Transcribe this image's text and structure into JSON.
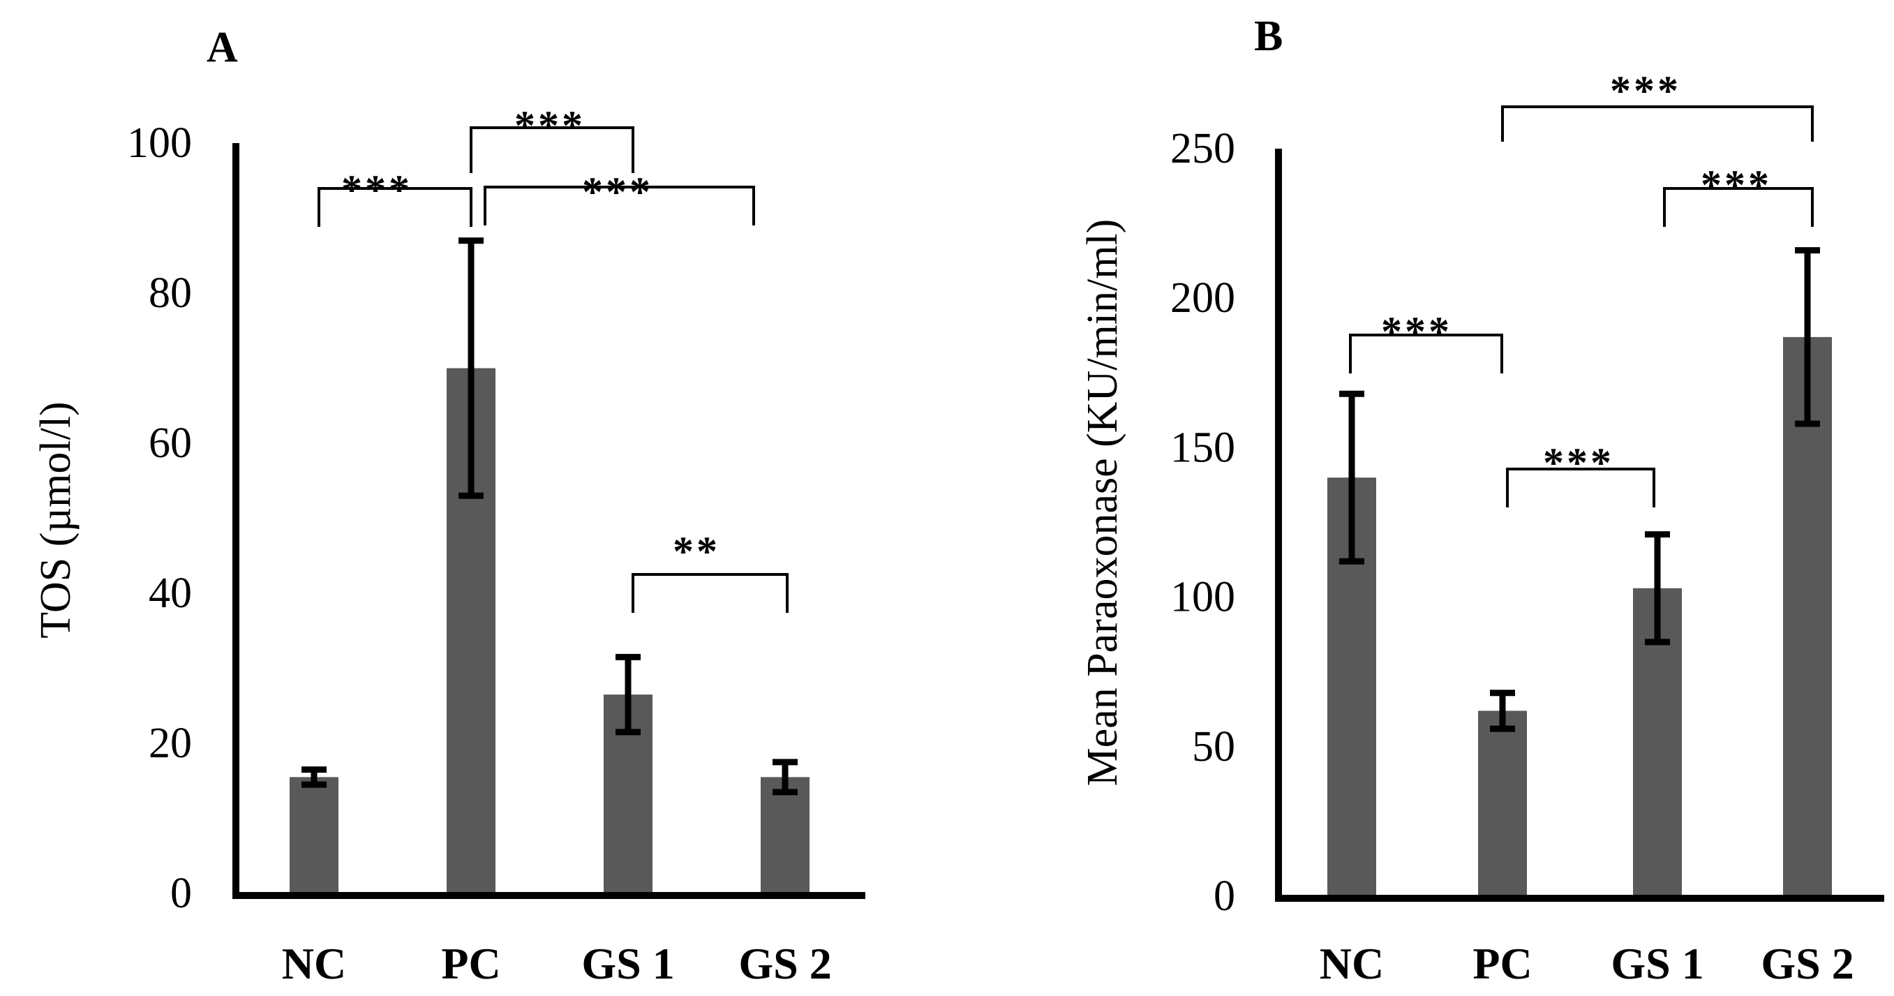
{
  "chart_data": [
    {
      "type": "bar",
      "panel": "A",
      "title": "",
      "xlabel": "",
      "ylabel": "TOS (µmol/l)",
      "categories": [
        "NC",
        "PC",
        "GS 1",
        "GS 2"
      ],
      "values": [
        15.5,
        70,
        26.5,
        15.5
      ],
      "error": [
        1,
        17,
        5,
        2
      ],
      "ylim": [
        0,
        100
      ],
      "yticks": [
        0,
        20,
        40,
        60,
        80,
        100
      ],
      "grid": false,
      "annotations": [
        {
          "from": "NC",
          "to": "PC",
          "label": "***"
        },
        {
          "from": "PC",
          "to": "GS 1",
          "label": "***"
        },
        {
          "from": "PC",
          "to": "GS 2",
          "label": "***"
        },
        {
          "from": "GS 1",
          "to": "GS 2",
          "label": "**"
        }
      ]
    },
    {
      "type": "bar",
      "panel": "B",
      "title": "",
      "xlabel": "",
      "ylabel": "Mean Paraoxonase (KU/min/ml)",
      "categories": [
        "NC",
        "PC",
        "GS 1",
        "GS 2"
      ],
      "values": [
        140,
        62,
        103,
        187
      ],
      "error": [
        28,
        6,
        18,
        29
      ],
      "ylim": [
        0,
        250
      ],
      "yticks": [
        0,
        50,
        100,
        150,
        200,
        250
      ],
      "grid": false,
      "annotations": [
        {
          "from": "PC",
          "to": "GS 2",
          "label": "***"
        },
        {
          "from": "GS 1",
          "to": "GS 2",
          "label": "***"
        },
        {
          "from": "NC",
          "to": "PC",
          "label": "***"
        },
        {
          "from": "PC",
          "to": "GS 1",
          "label": "***"
        }
      ]
    }
  ],
  "colors": {
    "bar": "#595959",
    "axis": "#000000"
  }
}
